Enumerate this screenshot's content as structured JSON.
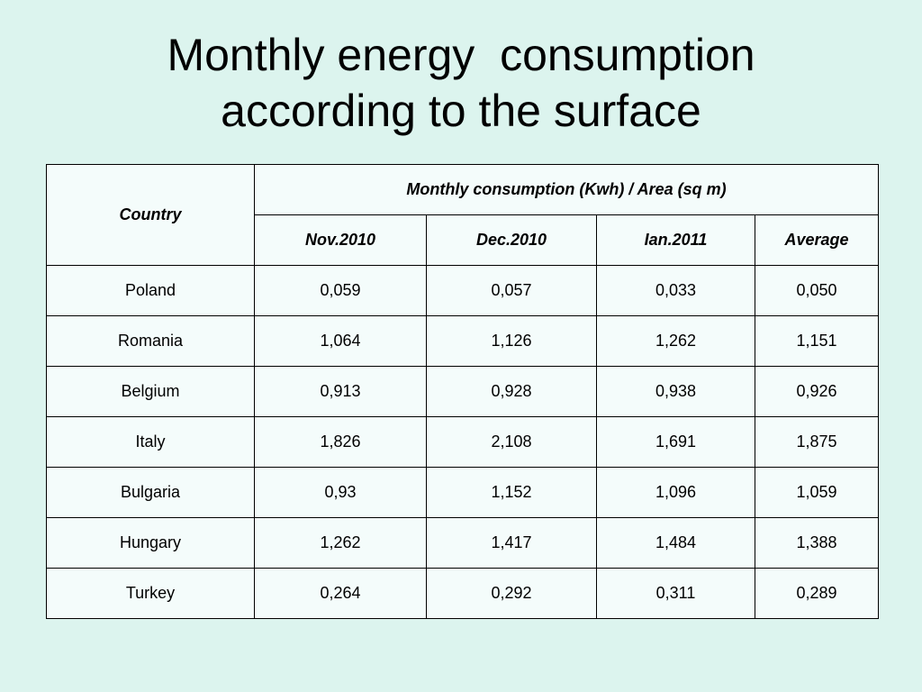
{
  "slide": {
    "title_line1": "Monthly energy  consumption",
    "title_line2": "according to the surface"
  },
  "table": {
    "country_header": "Country",
    "group_header": "Monthly consumption (Kwh) / Area (sq m)",
    "columns": [
      "Nov.2010",
      "Dec.2010",
      "Ian.2011",
      "Average"
    ],
    "rows": [
      {
        "country": "Poland",
        "values": [
          "0,059",
          "0,057",
          "0,033",
          "0,050"
        ]
      },
      {
        "country": "Romania",
        "values": [
          "1,064",
          "1,126",
          "1,262",
          "1,151"
        ]
      },
      {
        "country": "Belgium",
        "values": [
          "0,913",
          "0,928",
          "0,938",
          "0,926"
        ]
      },
      {
        "country": "Italy",
        "values": [
          "1,826",
          "2,108",
          "1,691",
          "1,875"
        ]
      },
      {
        "country": "Bulgaria",
        "values": [
          "0,93",
          "1,152",
          "1,096",
          "1,059"
        ]
      },
      {
        "country": "Hungary",
        "values": [
          "1,262",
          "1,417",
          "1,484",
          "1,388"
        ]
      },
      {
        "country": "Turkey",
        "values": [
          "0,264",
          "0,292",
          "0,311",
          "0,289"
        ]
      }
    ]
  }
}
